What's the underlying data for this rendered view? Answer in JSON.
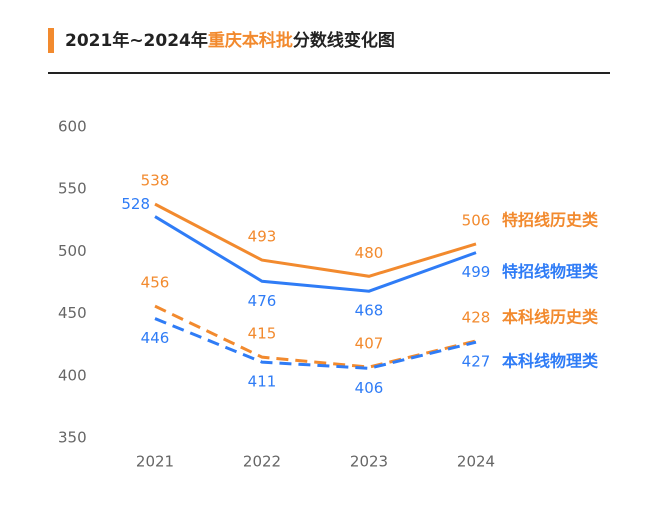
{
  "chart_data": {
    "type": "line",
    "title": [
      "2021年~2024年",
      "重庆本科批",
      "分数线变化图"
    ],
    "title_colors": [
      "#222222",
      "#f28a2e",
      "#222222"
    ],
    "x": [
      "2021",
      "2022",
      "2023",
      "2024"
    ],
    "ylim": [
      350,
      600
    ],
    "yticks": [
      350,
      400,
      450,
      500,
      550,
      600
    ],
    "series": [
      {
        "name": "特招线历史类",
        "color": "#f28a2e",
        "dash": false,
        "values": [
          538,
          493,
          480,
          506
        ]
      },
      {
        "name": "特招线物理类",
        "color": "#2f7cf6",
        "dash": false,
        "values": [
          528,
          476,
          468,
          499
        ]
      },
      {
        "name": "本科线历史类",
        "color": "#f28a2e",
        "dash": true,
        "values": [
          456,
          415,
          407,
          428
        ]
      },
      {
        "name": "本科线物理类",
        "color": "#2f7cf6",
        "dash": true,
        "values": [
          446,
          411,
          406,
          427
        ]
      }
    ]
  }
}
